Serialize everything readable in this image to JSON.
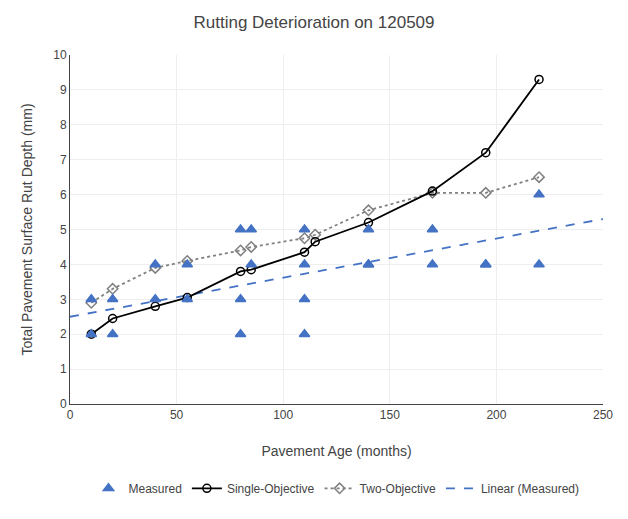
{
  "chart_data": {
    "type": "line",
    "title": "Rutting Deterioration on 120509",
    "xlabel": "Pavement Age (months)",
    "ylabel": "Total Pavement Surface Rut Depth (mm)",
    "xlim": [
      0,
      250
    ],
    "ylim": [
      0,
      10
    ],
    "xticks": [
      0,
      50,
      100,
      150,
      200,
      250
    ],
    "yticks": [
      0,
      1,
      2,
      3,
      4,
      5,
      6,
      7,
      8,
      9,
      10
    ],
    "grid": true,
    "legend": "bottom",
    "series": [
      {
        "name": "Measured",
        "type": "scatter",
        "color": "#4472c4",
        "marker": "triangle-up",
        "x": [
          10,
          10,
          20,
          20,
          40,
          40,
          55,
          55,
          80,
          80,
          80,
          85,
          85,
          110,
          110,
          110,
          110,
          140,
          140,
          140,
          170,
          170,
          195,
          195,
          220,
          220
        ],
        "values": [
          2,
          3,
          2,
          3,
          3,
          4,
          3,
          4,
          2,
          3,
          5,
          4,
          5,
          2,
          3,
          4,
          5,
          4,
          4,
          5,
          4,
          5,
          4,
          4,
          4,
          6
        ]
      },
      {
        "name": "Single-Objective",
        "type": "line",
        "color": "#000000",
        "marker": "circle-open",
        "line_style": "solid",
        "x": [
          10,
          20,
          40,
          55,
          80,
          85,
          110,
          115,
          140,
          170,
          195,
          220
        ],
        "values": [
          2.0,
          2.45,
          2.8,
          3.05,
          3.8,
          3.85,
          4.35,
          4.65,
          5.2,
          6.1,
          7.2,
          9.3
        ]
      },
      {
        "name": "Two-Objective",
        "type": "line",
        "color": "#808080",
        "marker": "diamond-open",
        "line_style": "dotted",
        "x": [
          10,
          20,
          40,
          55,
          80,
          85,
          110,
          115,
          140,
          170,
          195,
          220
        ],
        "values": [
          2.9,
          3.3,
          3.9,
          4.1,
          4.4,
          4.5,
          4.75,
          4.85,
          5.55,
          6.05,
          6.05,
          6.5
        ]
      },
      {
        "name": "Linear (Measured)",
        "type": "line",
        "color": "#4472c4",
        "line_style": "dashed",
        "x": [
          0,
          250
        ],
        "values": [
          2.5,
          5.3
        ]
      }
    ]
  }
}
